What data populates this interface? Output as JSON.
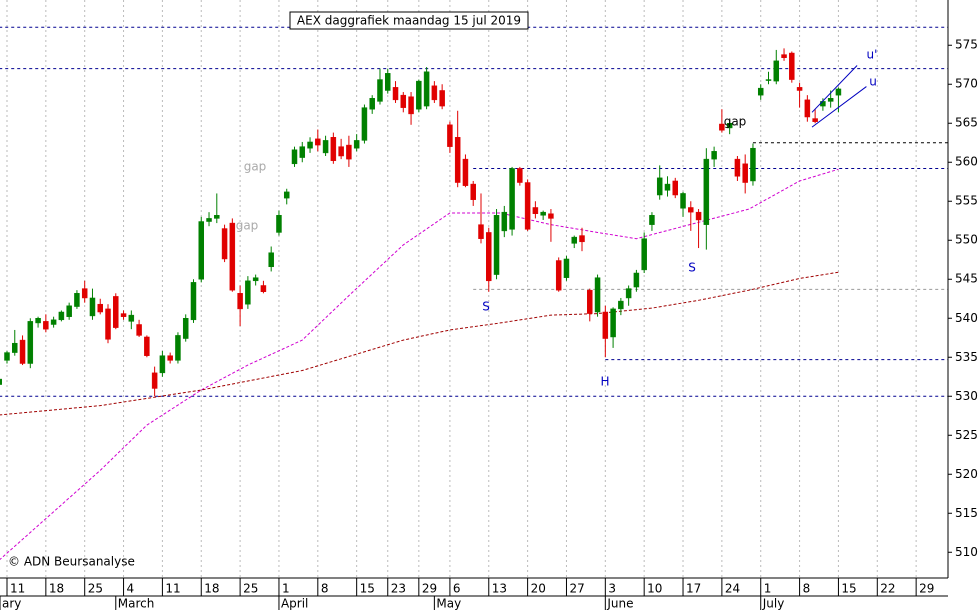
{
  "chart_data": {
    "type": "candlestick",
    "title": "AEX daggrafiek maandag 15 jul 2019",
    "xlim": [
      -0.9,
      121.1
    ],
    "ylim": [
      506.7,
      580.8
    ],
    "yticks": [
      510,
      515,
      520,
      525,
      530,
      535,
      540,
      545,
      550,
      555,
      560,
      565,
      570,
      575
    ],
    "xticks": [
      {
        "value": 0,
        "label": "11"
      },
      {
        "value": 5,
        "label": "18"
      },
      {
        "value": 10,
        "label": "25"
      },
      {
        "value": 15,
        "label": "4"
      },
      {
        "value": 20,
        "label": "11"
      },
      {
        "value": 25,
        "label": "18"
      },
      {
        "value": 30,
        "label": "25"
      },
      {
        "value": 35,
        "label": "1"
      },
      {
        "value": 40,
        "label": "8"
      },
      {
        "value": 45,
        "label": "15"
      },
      {
        "value": 49,
        "label": "23"
      },
      {
        "value": 53,
        "label": "29"
      },
      {
        "value": 57,
        "label": "6"
      },
      {
        "value": 62,
        "label": "13"
      },
      {
        "value": 67,
        "label": "20"
      },
      {
        "value": 72,
        "label": "27"
      },
      {
        "value": 77,
        "label": "3"
      },
      {
        "value": 82,
        "label": "10"
      },
      {
        "value": 87,
        "label": "17"
      },
      {
        "value": 92,
        "label": "24"
      },
      {
        "value": 97,
        "label": "1"
      },
      {
        "value": 102,
        "label": "8"
      },
      {
        "value": 107,
        "label": "15"
      },
      {
        "value": 112,
        "label": "22"
      },
      {
        "value": 117,
        "label": "29"
      }
    ],
    "months": [
      {
        "value": -1,
        "label": "ary"
      },
      {
        "value": 14,
        "label": "March"
      },
      {
        "value": 35,
        "label": "April"
      },
      {
        "value": 55,
        "label": "May"
      },
      {
        "value": 77,
        "label": "June"
      },
      {
        "value": 97,
        "label": "July"
      }
    ],
    "up_color": "#008000",
    "down_color": "#e00000",
    "x": [
      -1,
      0,
      1,
      2,
      3,
      4,
      5,
      6,
      7,
      8,
      9,
      10,
      11,
      12,
      13,
      14,
      15,
      16,
      17,
      18,
      19,
      20,
      21,
      22,
      23,
      24,
      25,
      26,
      27,
      28,
      29,
      30,
      31,
      32,
      33,
      34,
      35,
      36,
      37,
      38,
      39,
      40,
      41,
      42,
      43,
      44,
      45,
      46,
      47,
      48,
      49,
      50,
      51,
      52,
      53,
      54,
      55,
      56,
      57,
      58,
      59,
      60,
      61,
      62,
      63,
      64,
      65,
      66,
      67,
      68,
      69,
      70,
      71,
      72,
      73,
      74,
      75,
      76,
      77,
      78,
      79,
      80,
      81,
      82,
      83,
      84,
      85,
      86,
      87,
      88,
      89,
      90,
      91,
      92,
      93,
      94,
      95,
      96,
      97,
      98,
      99,
      100,
      101,
      102,
      103,
      104,
      105,
      106,
      107
    ],
    "open": [
      531.5,
      534.6,
      535.6,
      537.2,
      534.2,
      539.4,
      539.6,
      539.2,
      539.8,
      540.2,
      541.5,
      543.8,
      540.3,
      541.8,
      541.2,
      542.8,
      540.6,
      539.6,
      539.2,
      537.6,
      533,
      533,
      535.2,
      534.6,
      537.4,
      539.8,
      545,
      552.4,
      552.8,
      551.5,
      552.2,
      543.2,
      541.8,
      544.8,
      544.2,
      546.6,
      551,
      555.4,
      559.8,
      560.6,
      561.8,
      563,
      561.2,
      563.2,
      562,
      562.2,
      561.8,
      562.8,
      566.8,
      567.8,
      569.2,
      569.6,
      568.6,
      568.4,
      566.8,
      567.2,
      569.8,
      569.2,
      564.8,
      563.2,
      560.4,
      557.2,
      552,
      551,
      545.6,
      551.2,
      551.4,
      559.2,
      557.4,
      554.2,
      553.2,
      553.4,
      547.4,
      545.2,
      549.6,
      550.6,
      543.6,
      540.8,
      540.8,
      537.6,
      541.2,
      542.6,
      544,
      546.2,
      552,
      555.8,
      556.4,
      557.6,
      554.1,
      554.2,
      553.6,
      552,
      560.4,
      564.9,
      564.4,
      560.4,
      559.8,
      557.6,
      568.6,
      570.5,
      570.4,
      573.8,
      574,
      569.6,
      568,
      565.6,
      567.2,
      567.8,
      568.6
    ],
    "high": [
      532.5,
      535.8,
      538.5,
      537.8,
      540,
      540.2,
      540.5,
      540.2,
      541,
      542,
      543.6,
      544.8,
      543.8,
      542.5,
      541.8,
      543.2,
      541,
      541,
      539.8,
      537.8,
      533.8,
      535.8,
      535.6,
      538.2,
      540.5,
      545,
      553,
      553.6,
      556,
      552,
      552.8,
      544.2,
      545.4,
      545.6,
      544.8,
      549.2,
      553.8,
      556.6,
      562,
      562.6,
      563.2,
      564.2,
      563.4,
      563.8,
      563,
      563.4,
      563.6,
      567.4,
      568.6,
      572,
      572,
      570.4,
      569,
      569,
      570.6,
      572.2,
      570.4,
      570,
      565.2,
      566.6,
      561,
      557.6,
      556,
      551.6,
      554,
      554.4,
      559.4,
      559.4,
      557.8,
      555,
      553.8,
      554,
      547.8,
      548,
      550.6,
      551.6,
      543.8,
      545.6,
      541.6,
      541.4,
      542.6,
      544.2,
      546.2,
      551,
      553.6,
      559.6,
      558.2,
      558,
      556.2,
      555,
      554,
      561.8,
      562,
      566.8,
      565.4,
      560.8,
      561,
      562.4,
      570,
      571.6,
      574.4,
      574.6,
      574.2,
      570.2,
      568.6,
      566.8,
      568.2,
      569.2,
      569.6
    ],
    "low": [
      530.8,
      534.2,
      535.2,
      534,
      533.6,
      538.8,
      538.2,
      538.8,
      539.6,
      539.8,
      541.2,
      542,
      539.8,
      540.5,
      536.8,
      538.6,
      539.8,
      538.6,
      537.6,
      535,
      530,
      532.5,
      534.2,
      534.2,
      537,
      539.4,
      544.6,
      551.8,
      552.2,
      547.2,
      543.4,
      539,
      541.2,
      544.2,
      543.2,
      546,
      550.6,
      554.6,
      559.4,
      560,
      561.2,
      561.4,
      560.8,
      559.8,
      560.4,
      559.4,
      561.4,
      562.4,
      566.2,
      567.4,
      568.8,
      567.6,
      566.4,
      564.8,
      566.4,
      566.8,
      567.6,
      566.8,
      561.2,
      556.8,
      556.8,
      554.4,
      549.6,
      543.4,
      545,
      550.4,
      550.6,
      557,
      551.2,
      552.8,
      552.6,
      549.8,
      543.4,
      544.8,
      549,
      548.6,
      539.6,
      540.2,
      535,
      536.2,
      540.4,
      541.6,
      543.4,
      545.8,
      551.2,
      555.2,
      555.6,
      555.4,
      553,
      551.2,
      549,
      548.8,
      559.4,
      563.8,
      563.6,
      557.6,
      556,
      557,
      568,
      570,
      570,
      573,
      570.2,
      567,
      565.2,
      565,
      566.6,
      567,
      566.4
    ],
    "close": [
      532.2,
      535.6,
      536.8,
      534.2,
      539.6,
      540,
      538.6,
      539.8,
      540.8,
      541.6,
      543.2,
      542.6,
      542.6,
      540.8,
      537.3,
      538.8,
      540.2,
      540.4,
      537.8,
      535.2,
      531,
      535.2,
      534.6,
      537.8,
      540,
      544.6,
      552.4,
      552.8,
      553.2,
      547.6,
      543.6,
      541.2,
      544.8,
      545.2,
      543.4,
      548.4,
      553.2,
      556.2,
      561.6,
      562,
      562.6,
      562.2,
      562.8,
      560.2,
      560.8,
      560.4,
      562.8,
      567,
      568.2,
      570.6,
      571.4,
      568,
      567,
      566.2,
      570.4,
      571.6,
      568,
      567.2,
      562,
      557.4,
      557,
      555.2,
      550.2,
      544.8,
      553.2,
      553.6,
      559.2,
      557.4,
      551.4,
      553.4,
      553.6,
      552.8,
      543.6,
      547.6,
      550.4,
      549.8,
      540.6,
      545.2,
      537.4,
      541.2,
      542.2,
      543.8,
      545.8,
      550.2,
      553.2,
      558,
      557.2,
      555.8,
      556,
      553.6,
      552.6,
      560.4,
      561.4,
      564.1,
      565,
      558.2,
      557.4,
      561.8,
      569.5,
      570.6,
      573,
      573.4,
      570.6,
      569.2,
      565.8,
      565.2,
      567.8,
      568.2,
      569.4
    ],
    "averages": [
      {
        "color": "#d000d0",
        "x": [
          -1,
          12,
          18,
          25,
          31,
          38,
          44,
          51,
          57,
          63.5,
          70,
          76,
          81,
          89,
          95.5,
          102,
          107
        ],
        "values": [
          509,
          520.5,
          526.3,
          530.8,
          534,
          537.2,
          542.9,
          549.4,
          553.5,
          553.5,
          552,
          551,
          550.2,
          552.3,
          554,
          557.6,
          559.1
        ]
      },
      {
        "color": "#a00000",
        "x": [
          -1,
          12,
          25,
          38,
          51,
          57,
          63.5,
          70,
          76,
          83,
          89,
          95.5,
          102,
          107
        ],
        "values": [
          527.6,
          528.8,
          530.8,
          533.3,
          537.2,
          538.5,
          539.4,
          540.4,
          540.6,
          541.3,
          542.3,
          543.6,
          545.1,
          545.9
        ]
      }
    ],
    "levels": [
      {
        "value": 577.3,
        "from": -1,
        "color": "#000090"
      },
      {
        "value": 572,
        "from": -1,
        "color": "#000090"
      },
      {
        "value": 530,
        "from": -1,
        "color": "#000090"
      },
      {
        "value": 559.2,
        "from": 60,
        "color": "#000090"
      },
      {
        "value": 543.7,
        "from": 60,
        "color": "#999999"
      },
      {
        "value": 534.7,
        "from": 77,
        "color": "#000090"
      },
      {
        "value": 562.5,
        "from": 96,
        "color": "#000000"
      }
    ],
    "channel": {
      "color": "#0000c0",
      "lines": [
        [
          103.6,
          566.4,
          109.4,
          572.4
        ],
        [
          103.6,
          564.5,
          110.6,
          569.7
        ]
      ]
    },
    "annotations": [
      {
        "text": "gap",
        "color": "#aaaaaa"
      },
      {
        "text": "gap",
        "color": "#aaaaaa"
      },
      {
        "text": "gap",
        "color": "#000000"
      },
      {
        "text": "S",
        "color": "#0000c0"
      },
      {
        "text": "S",
        "color": "#0000c0"
      },
      {
        "text": "H",
        "color": "#0000c0"
      },
      {
        "text": "u'",
        "color": "#0000c0"
      },
      {
        "text": "u",
        "color": "#0000c0"
      },
      {
        "text": "© ADN Beursanalyse",
        "color": "#000000"
      }
    ]
  }
}
